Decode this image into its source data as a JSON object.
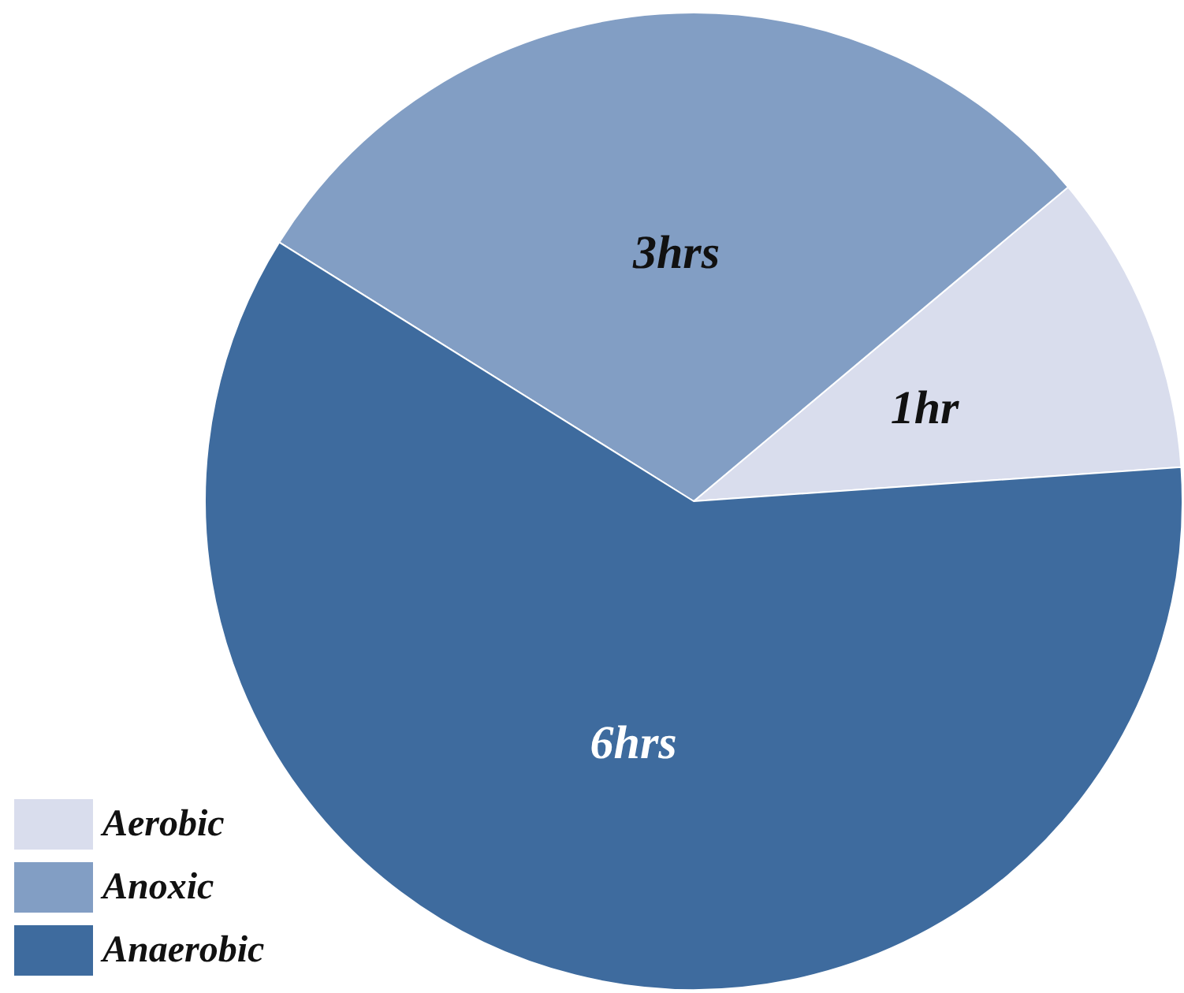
{
  "chart_data": {
    "type": "pie",
    "categories": [
      "Aerobic",
      "Anoxic",
      "Anaerobic"
    ],
    "values": [
      1,
      3,
      6
    ],
    "value_labels": [
      "1hr",
      "3hrs",
      "6hrs"
    ],
    "colors": [
      "#d9dded",
      "#829ec4",
      "#3e6b9e"
    ],
    "legend": "bottom left"
  }
}
